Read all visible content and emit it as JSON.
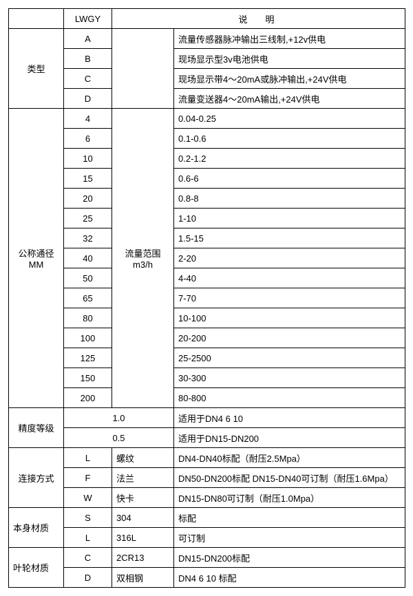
{
  "header": {
    "col2": "LWGY",
    "col4": "说明"
  },
  "type": {
    "label": "类型",
    "rows": [
      {
        "code": "A",
        "desc": "流量传感器脉冲输出三线制,+12v供电"
      },
      {
        "code": "B",
        "desc": "现场显示型3v电池供电"
      },
      {
        "code": "C",
        "desc": "现场显示带4～20mA或脉冲输出,+24V供电"
      },
      {
        "code": "D",
        "desc": "流量变送器4～20mA输出,+24V供电"
      }
    ]
  },
  "dn": {
    "label_line1": "公称通径",
    "label_line2": "MM",
    "range_label_line1": "流量范围",
    "range_label_line2": "m3/h",
    "rows": [
      {
        "dn": "4",
        "range": "0.04-0.25"
      },
      {
        "dn": "6",
        "range": "0.1-0.6"
      },
      {
        "dn": "10",
        "range": "0.2-1.2"
      },
      {
        "dn": "15",
        "range": "0.6-6"
      },
      {
        "dn": "20",
        "range": "0.8-8"
      },
      {
        "dn": "25",
        "range": "1-10"
      },
      {
        "dn": "32",
        "range": "1.5-15"
      },
      {
        "dn": "40",
        "range": "2-20"
      },
      {
        "dn": "50",
        "range": "4-40"
      },
      {
        "dn": "65",
        "range": "7-70"
      },
      {
        "dn": "80",
        "range": "10-100"
      },
      {
        "dn": "100",
        "range": "20-200"
      },
      {
        "dn": "125",
        "range": "25-2500"
      },
      {
        "dn": "150",
        "range": "30-300"
      },
      {
        "dn": "200",
        "range": "80-800"
      }
    ]
  },
  "accuracy": {
    "label": "精度等级",
    "rows": [
      {
        "val": "1.0",
        "desc": "适用于DN4  6  10"
      },
      {
        "val": "0.5",
        "desc": "适用于DN15-DN200"
      }
    ]
  },
  "connection": {
    "label": "连接方式",
    "rows": [
      {
        "code": "L",
        "name": "螺纹",
        "desc": "DN4-DN40标配（耐压2.5Mpa）"
      },
      {
        "code": "F",
        "name": "法兰",
        "desc": "DN50-DN200标配 DN15-DN40可订制（耐压1.6Mpa）"
      },
      {
        "code": "W",
        "name": "快卡",
        "desc": "DN15-DN80可订制（耐压1.0Mpa）"
      }
    ]
  },
  "body_material": {
    "label": "本身材质",
    "rows": [
      {
        "code": "S",
        "name": "304",
        "desc": "标配"
      },
      {
        "code": "L",
        "name": "316L",
        "desc": "可订制"
      }
    ]
  },
  "impeller_material": {
    "label": "叶轮材质",
    "rows": [
      {
        "code": "C",
        "name": "2CR13",
        "desc": "DN15-DN200标配"
      },
      {
        "code": "D",
        "name": "双相钢",
        "desc": "DN4 6 10 标配"
      }
    ]
  }
}
